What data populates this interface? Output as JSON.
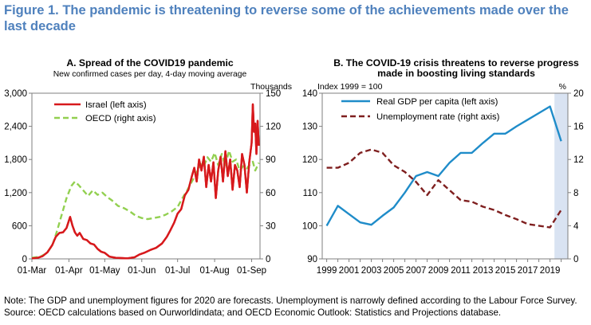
{
  "figure": {
    "title": "Figure 1. The pandemic is threatening to reverse some of the achievements made over the last decade",
    "note": "Note: The GDP and unemployment figures for 2020 are forecasts. Unemployment is narrowly defined according to the Labour Force Survey.",
    "source": "Source: OECD calculations based on Ourworldindata; and OECD Economic Outlook: Statistics and Projections database."
  },
  "chart_data": [
    {
      "type": "line",
      "title": "A. Spread of the COVID19 pandemic",
      "subtitle": "New confirmed cases per day, 4-day moving average",
      "right_unit": "Thousands",
      "x_ticks": [
        "01-Mar",
        "01-Apr",
        "01-May",
        "01-Jun",
        "01-Jul",
        "01-Aug",
        "01-Sep"
      ],
      "ylim_left": [
        0,
        3000
      ],
      "yticks_left": [
        0,
        600,
        1200,
        1800,
        2400,
        3000
      ],
      "ylim_right": [
        0,
        150
      ],
      "yticks_right": [
        0,
        30,
        60,
        90,
        120,
        150
      ],
      "legend_position": "top-left",
      "series": [
        {
          "name": "Israel (left axis)",
          "axis": "left",
          "color": "#d7191c",
          "style": "solid",
          "x": [
            "2020-03-01",
            "2020-03-06",
            "2020-03-10",
            "2020-03-14",
            "2020-03-18",
            "2020-03-21",
            "2020-03-24",
            "2020-03-27",
            "2020-03-30",
            "2020-04-02",
            "2020-04-04",
            "2020-04-06",
            "2020-04-08",
            "2020-04-10",
            "2020-04-13",
            "2020-04-16",
            "2020-04-19",
            "2020-04-22",
            "2020-04-25",
            "2020-04-28",
            "2020-05-01",
            "2020-05-05",
            "2020-05-10",
            "2020-05-15",
            "2020-05-20",
            "2020-05-26",
            "2020-05-30",
            "2020-06-03",
            "2020-06-08",
            "2020-06-13",
            "2020-06-18",
            "2020-06-22",
            "2020-06-25",
            "2020-06-28",
            "2020-07-01",
            "2020-07-04",
            "2020-07-07",
            "2020-07-10",
            "2020-07-13",
            "2020-07-15",
            "2020-07-17",
            "2020-07-19",
            "2020-07-21",
            "2020-07-23",
            "2020-07-25",
            "2020-07-27",
            "2020-07-29",
            "2020-07-31",
            "2020-08-02",
            "2020-08-04",
            "2020-08-06",
            "2020-08-08",
            "2020-08-10",
            "2020-08-12",
            "2020-08-14",
            "2020-08-16",
            "2020-08-18",
            "2020-08-20",
            "2020-08-22",
            "2020-08-24",
            "2020-08-26",
            "2020-08-28",
            "2020-08-30",
            "2020-09-01",
            "2020-09-02",
            "2020-09-03",
            "2020-09-04",
            "2020-09-05",
            "2020-09-06",
            "2020-09-07"
          ],
          "y": [
            10,
            20,
            50,
            120,
            250,
            400,
            470,
            480,
            560,
            760,
            600,
            480,
            420,
            470,
            360,
            340,
            280,
            260,
            180,
            130,
            110,
            40,
            20,
            15,
            10,
            30,
            80,
            110,
            160,
            200,
            280,
            400,
            520,
            650,
            820,
            900,
            1150,
            1250,
            1500,
            1650,
            1400,
            1800,
            1600,
            1850,
            1300,
            1700,
            1400,
            1750,
            1100,
            1600,
            1850,
            1400,
            1950,
            1500,
            1800,
            1250,
            1700,
            1600,
            1300,
            1900,
            1700,
            1200,
            1750,
            2100,
            2800,
            2300,
            2450,
            1900,
            2500,
            2050
          ]
        },
        {
          "name": "OECD (right axis)",
          "axis": "right",
          "color": "#92d050",
          "style": "dashed",
          "x": [
            "2020-03-01",
            "2020-03-08",
            "2020-03-13",
            "2020-03-18",
            "2020-03-22",
            "2020-03-26",
            "2020-03-30",
            "2020-04-03",
            "2020-04-06",
            "2020-04-09",
            "2020-04-13",
            "2020-04-17",
            "2020-04-21",
            "2020-04-25",
            "2020-04-29",
            "2020-05-03",
            "2020-05-07",
            "2020-05-12",
            "2020-05-17",
            "2020-05-22",
            "2020-05-27",
            "2020-06-01",
            "2020-06-06",
            "2020-06-11",
            "2020-06-16",
            "2020-06-21",
            "2020-06-26",
            "2020-07-01",
            "2020-07-05",
            "2020-07-09",
            "2020-07-13",
            "2020-07-17",
            "2020-07-20",
            "2020-07-23",
            "2020-07-26",
            "2020-07-29",
            "2020-08-01",
            "2020-08-04",
            "2020-08-07",
            "2020-08-10",
            "2020-08-13",
            "2020-08-16",
            "2020-08-19",
            "2020-08-22",
            "2020-08-25",
            "2020-08-28",
            "2020-08-31",
            "2020-09-02",
            "2020-09-04",
            "2020-09-07"
          ],
          "y": [
            1,
            2,
            5,
            12,
            25,
            40,
            55,
            66,
            70,
            67,
            62,
            57,
            62,
            58,
            60,
            56,
            53,
            48,
            46,
            43,
            39,
            37,
            36,
            37,
            38,
            40,
            43,
            47,
            55,
            62,
            70,
            78,
            86,
            84,
            92,
            88,
            96,
            85,
            95,
            84,
            98,
            88,
            90,
            80,
            84,
            82,
            86,
            88,
            80,
            87
          ]
        }
      ]
    },
    {
      "type": "line",
      "title": "B. The COVID-19 crisis threatens to reverse progress made in boosting living standards",
      "left_unit": "Index 1999 = 100",
      "right_unit": "%",
      "x_ticks": [
        "1999",
        "2001",
        "2003",
        "2005",
        "2007",
        "2009",
        "2011",
        "2013",
        "2015",
        "2017",
        "2019"
      ],
      "ylim_left": [
        90,
        140
      ],
      "yticks_left": [
        90,
        100,
        110,
        120,
        130,
        140
      ],
      "ylim_right": [
        0,
        20
      ],
      "yticks_right": [
        0,
        4,
        8,
        12,
        16,
        20
      ],
      "shaded_period": "2019-2020",
      "legend_position": "top-left",
      "series": [
        {
          "name": "Real GDP per capita (left axis)",
          "axis": "left",
          "color": "#1f8cc9",
          "style": "solid",
          "x": [
            1999,
            2000,
            2001,
            2002,
            2003,
            2004,
            2005,
            2006,
            2007,
            2008,
            2009,
            2010,
            2011,
            2012,
            2013,
            2014,
            2015,
            2016,
            2017,
            2018,
            2019,
            2020
          ],
          "y": [
            100,
            106,
            103.5,
            101,
            100.3,
            103,
            105.5,
            110,
            115,
            116.2,
            115,
            119,
            122,
            122,
            125,
            127.8,
            127.8,
            130,
            132,
            134,
            136,
            125.5
          ]
        },
        {
          "name": "Unemployment rate (right axis)",
          "axis": "right",
          "color": "#7f1f1f",
          "style": "dashed",
          "x": [
            1999,
            2000,
            2001,
            2002,
            2003,
            2004,
            2005,
            2006,
            2007,
            2008,
            2009,
            2010,
            2011,
            2012,
            2013,
            2014,
            2015,
            2016,
            2017,
            2018,
            2019,
            2020
          ],
          "y": [
            11.0,
            11.0,
            11.6,
            12.8,
            13.2,
            12.8,
            11.3,
            10.5,
            9.3,
            7.7,
            9.5,
            8.3,
            7.1,
            6.9,
            6.3,
            5.9,
            5.3,
            4.8,
            4.2,
            4.0,
            3.8,
            5.9
          ]
        }
      ]
    }
  ]
}
